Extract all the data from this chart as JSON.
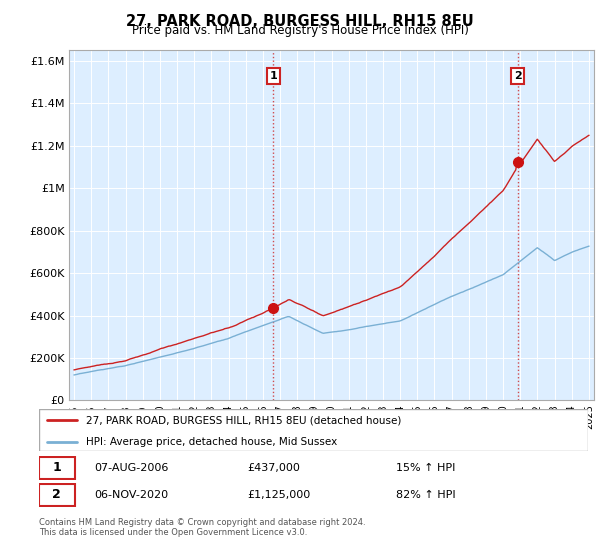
{
  "title": "27, PARK ROAD, BURGESS HILL, RH15 8EU",
  "subtitle": "Price paid vs. HM Land Registry's House Price Index (HPI)",
  "ylabel_ticks": [
    "£0",
    "£200K",
    "£400K",
    "£600K",
    "£800K",
    "£1M",
    "£1.2M",
    "£1.4M",
    "£1.6M"
  ],
  "ylabel_values": [
    0,
    200000,
    400000,
    600000,
    800000,
    1000000,
    1200000,
    1400000,
    1600000
  ],
  "ylim": [
    0,
    1650000
  ],
  "xlim_start": 1994.7,
  "xlim_end": 2025.3,
  "marker1_x": 2006.6,
  "marker1_y": 437000,
  "marker1_label": "1",
  "marker1_date": "07-AUG-2006",
  "marker1_price": "£437,000",
  "marker1_hpi": "15% ↑ HPI",
  "marker2_x": 2020.85,
  "marker2_y": 1125000,
  "marker2_label": "2",
  "marker2_date": "06-NOV-2020",
  "marker2_price": "£1,125,000",
  "marker2_hpi": "82% ↑ HPI",
  "legend_line1": "27, PARK ROAD, BURGESS HILL, RH15 8EU (detached house)",
  "legend_line2": "HPI: Average price, detached house, Mid Sussex",
  "footer": "Contains HM Land Registry data © Crown copyright and database right 2024.\nThis data is licensed under the Open Government Licence v3.0.",
  "line_red_color": "#cc2222",
  "line_blue_color": "#7ab0d4",
  "chart_bg_color": "#ddeeff",
  "grid_color": "#ffffff",
  "background_color": "#ffffff",
  "xtick_years": [
    1995,
    1996,
    1997,
    1998,
    1999,
    2000,
    2001,
    2002,
    2003,
    2004,
    2005,
    2006,
    2007,
    2008,
    2009,
    2010,
    2011,
    2012,
    2013,
    2014,
    2015,
    2016,
    2017,
    2018,
    2019,
    2020,
    2021,
    2022,
    2023,
    2024,
    2025
  ]
}
